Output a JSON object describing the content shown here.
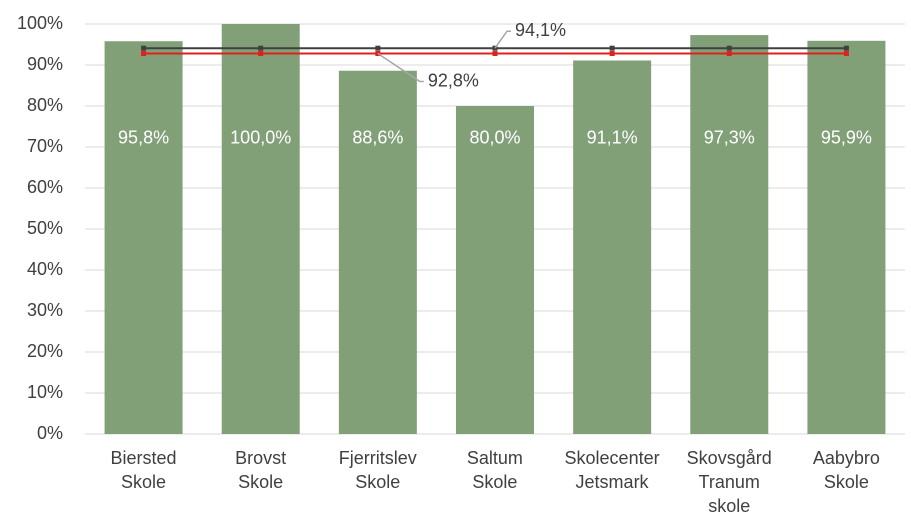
{
  "chart_data": {
    "type": "bar",
    "categories": [
      "Biersted\nSkole",
      "Brovst\nSkole",
      "Fjerritslev\nSkole",
      "Saltum\nSkole",
      "Skolecenter\nJetsmark",
      "Skovsgård\nTranum\nskole",
      "Aabybro\nSkole"
    ],
    "values": [
      95.8,
      100.0,
      88.6,
      80.0,
      91.1,
      97.3,
      95.9
    ],
    "value_labels": [
      "95,8%",
      "100,0%",
      "88,6%",
      "80,0%",
      "91,1%",
      "97,3%",
      "95,9%"
    ],
    "color": "#82a078",
    "lines": [
      {
        "color": "#404040",
        "values": [
          94.1,
          94.1,
          94.1,
          94.1,
          94.1,
          94.1,
          94.1
        ],
        "value_labels": [
          null,
          null,
          null,
          "94,1%",
          null,
          null,
          null
        ]
      },
      {
        "color": "#e0201c",
        "values": [
          92.8,
          92.8,
          92.8,
          92.8,
          92.8,
          92.8,
          92.8
        ],
        "value_labels": [
          null,
          null,
          "92,8%",
          null,
          null,
          null,
          null
        ]
      }
    ],
    "ylim": [
      0,
      100
    ],
    "yticks": [
      {
        "value": 0,
        "label": "0%"
      },
      {
        "value": 10,
        "label": "10%"
      },
      {
        "value": 20,
        "label": "20%"
      },
      {
        "value": 30,
        "label": "30%"
      },
      {
        "value": 40,
        "label": "40%"
      },
      {
        "value": 50,
        "label": "50%"
      },
      {
        "value": 60,
        "label": "60%"
      },
      {
        "value": 70,
        "label": "70%"
      },
      {
        "value": 80,
        "label": "80%"
      },
      {
        "value": 90,
        "label": "90%"
      },
      {
        "value": 100,
        "label": "100%"
      }
    ],
    "grid": true
  }
}
